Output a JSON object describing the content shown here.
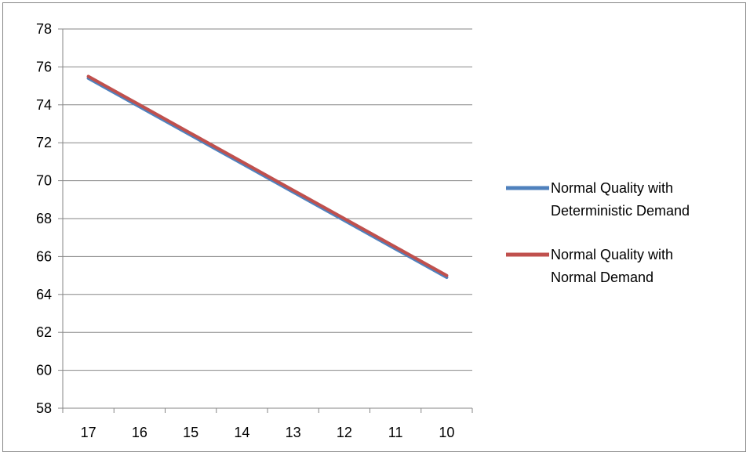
{
  "chart_data": {
    "type": "line",
    "title": "",
    "xlabel": "",
    "ylabel": "",
    "categories": [
      "17",
      "16",
      "15",
      "14",
      "13",
      "12",
      "11",
      "10"
    ],
    "ylim": [
      58,
      78
    ],
    "ytick_step": 2,
    "grid": "horizontal",
    "legend_position": "right",
    "series": [
      {
        "name_lines": [
          "Normal Quality with",
          "Deterministic Demand"
        ],
        "color": "#4F81BD",
        "values": [
          75.4,
          73.9,
          72.4,
          70.9,
          69.4,
          67.9,
          66.4,
          64.9
        ]
      },
      {
        "name_lines": [
          "Normal Quality with",
          "Normal Demand"
        ],
        "color": "#C0504D",
        "values": [
          75.5,
          74.0,
          72.5,
          71.0,
          69.5,
          68.0,
          66.5,
          65.0
        ]
      }
    ]
  }
}
